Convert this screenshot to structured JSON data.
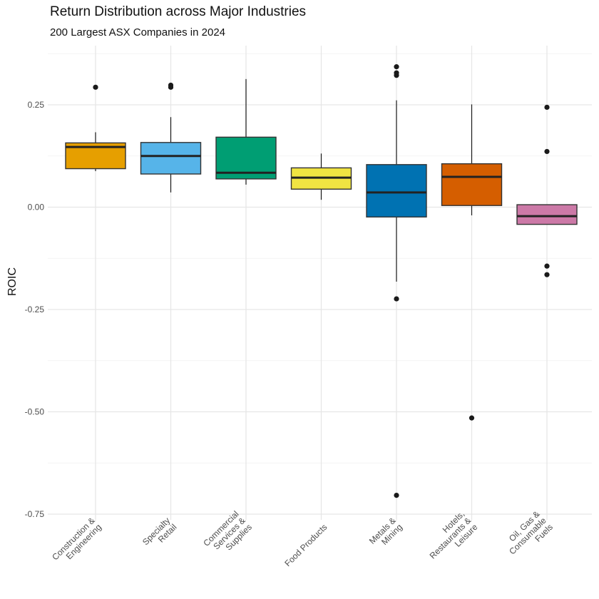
{
  "chart_data": {
    "type": "box",
    "title": "Return Distribution across Major Industries",
    "subtitle": "200 Largest ASX Companies in 2024",
    "xlabel": "",
    "ylabel": "ROIC",
    "ylim": [
      -0.76,
      0.39
    ],
    "yticks": [
      0.25,
      0.0,
      -0.25,
      -0.5,
      -0.75
    ],
    "ytick_labels": [
      "0.25",
      "0.00",
      "-0.25",
      "-0.50",
      "-0.75"
    ],
    "grid": true,
    "legend": "none",
    "categories": [
      {
        "label": [
          "Construction &",
          "Engineering"
        ],
        "color": "#E69F00",
        "whisker_low": 0.088,
        "q1": 0.094,
        "median": 0.147,
        "q3": 0.157,
        "whisker_high": 0.183,
        "outliers": [
          0.293
        ]
      },
      {
        "label": [
          "Specialty",
          "Retail"
        ],
        "color": "#56B4E9",
        "whisker_low": 0.036,
        "q1": 0.081,
        "median": 0.125,
        "q3": 0.158,
        "whisker_high": 0.22,
        "outliers": [
          0.293,
          0.298
        ]
      },
      {
        "label": [
          "Commercial",
          "Services &",
          "Supplies"
        ],
        "color": "#009E73",
        "whisker_low": 0.055,
        "q1": 0.069,
        "median": 0.084,
        "q3": 0.171,
        "whisker_high": 0.313,
        "outliers": []
      },
      {
        "label": [
          "Food Products"
        ],
        "color": "#F0E442",
        "whisker_low": 0.018,
        "q1": 0.044,
        "median": 0.072,
        "q3": 0.096,
        "whisker_high": 0.131,
        "outliers": []
      },
      {
        "label": [
          "Metals &",
          "Mining"
        ],
        "color": "#0072B2",
        "whisker_low": -0.182,
        "q1": -0.024,
        "median": 0.036,
        "q3": 0.104,
        "whisker_high": 0.261,
        "outliers": [
          -0.224,
          -0.704,
          0.322,
          0.328,
          0.343
        ]
      },
      {
        "label": [
          "Hotels,",
          "Restaurants &",
          "Leisure"
        ],
        "color": "#D55E00",
        "whisker_low": -0.02,
        "q1": 0.004,
        "median": 0.074,
        "q3": 0.106,
        "whisker_high": 0.251,
        "outliers": [
          -0.515
        ]
      },
      {
        "label": [
          "Oil, Gas &",
          "Consumable",
          "Fuels"
        ],
        "color": "#CC79A7",
        "whisker_low": -0.042,
        "q1": -0.042,
        "median": -0.022,
        "q3": 0.006,
        "whisker_high": 0.006,
        "outliers": [
          0.244,
          0.136,
          -0.144,
          -0.165
        ]
      }
    ]
  }
}
